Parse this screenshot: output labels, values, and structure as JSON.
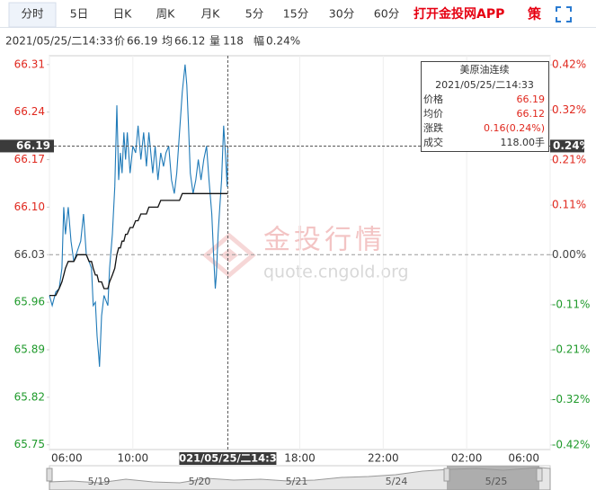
{
  "tabs": {
    "items": [
      "分时",
      "5日",
      "日K",
      "周K",
      "月K",
      "5分",
      "15分",
      "30分",
      "60分"
    ],
    "selected": 0,
    "app_link": "打开金投网APP",
    "strategy": "策"
  },
  "info": {
    "time": "2021/05/25/二14:33",
    "price_label": "价",
    "price": 66.19,
    "avg_label": "均",
    "avg": 66.12,
    "vol_label": "量",
    "vol": 118,
    "change_label": "幅",
    "change": "0.24%"
  },
  "tooltip": {
    "title": "美原油连续",
    "time": "2021/05/25/二14:33",
    "rows": [
      {
        "label": "价格",
        "value": "66.19"
      },
      {
        "label": "均价",
        "value": "66.12"
      },
      {
        "label": "涨跌",
        "value": "0.16(0.24%)"
      },
      {
        "label": "成交",
        "value": "118.00手"
      }
    ]
  },
  "cursor": {
    "time": "2021/05/25/二14:33",
    "price": {
      "value": 66.19,
      "label": "66.19"
    },
    "percent": {
      "value": 0.24,
      "label": "0.24%"
    }
  },
  "watermark": {
    "name": "金投行情",
    "url": "quote.cngold.org"
  },
  "navigator": {
    "dates": [
      "5/19",
      "5/20",
      "5/21",
      "5/24",
      "5/25"
    ]
  },
  "chart_data": {
    "type": "line",
    "x": [
      "06:00",
      "06:08",
      "06:18",
      "06:28",
      "06:36",
      "06:41",
      "06:46",
      "06:54",
      "07:02",
      "07:10",
      "07:20",
      "07:30",
      "07:38",
      "07:46",
      "07:54",
      "08:01",
      "08:06",
      "08:12",
      "08:17",
      "08:22",
      "08:24",
      "08:30",
      "08:37",
      "08:48",
      "08:53",
      "09:01",
      "09:08",
      "09:14",
      "09:19",
      "09:24",
      "09:29",
      "09:34",
      "09:39",
      "09:44",
      "09:52",
      "10:00",
      "10:08",
      "10:15",
      "10:23",
      "10:31",
      "10:39",
      "10:46",
      "10:57",
      "11:04",
      "11:12",
      "11:20",
      "11:28",
      "11:35",
      "11:43",
      "11:51",
      "11:59",
      "12:06",
      "12:14",
      "12:22",
      "12:30",
      "12:35",
      "12:40",
      "12:45",
      "12:53",
      "13:01",
      "13:08",
      "13:16",
      "13:24",
      "13:32",
      "13:39",
      "13:47",
      "13:52",
      "13:57",
      "14:00",
      "14:05",
      "14:10",
      "14:15",
      "14:21",
      "14:26",
      "14:31",
      "14:33"
    ],
    "series": [
      {
        "name": "价格",
        "color": "#1f7ab8",
        "values": [
          65.97,
          65.955,
          65.975,
          65.98,
          66.01,
          66.1,
          66.06,
          66.1,
          66.05,
          66.02,
          66.035,
          66.05,
          66.09,
          66.03,
          66.02,
          66.01,
          65.955,
          65.96,
          65.91,
          65.88,
          65.865,
          65.94,
          65.97,
          65.955,
          66.01,
          66.06,
          66.13,
          66.25,
          66.14,
          66.18,
          66.15,
          66.21,
          66.17,
          66.21,
          66.15,
          66.19,
          66.18,
          66.22,
          66.17,
          66.21,
          66.16,
          66.21,
          66.15,
          66.19,
          66.14,
          66.18,
          66.16,
          66.18,
          66.19,
          66.14,
          66.12,
          66.15,
          66.21,
          66.27,
          66.31,
          66.28,
          66.22,
          66.15,
          66.12,
          66.14,
          66.17,
          66.14,
          66.17,
          66.19,
          66.14,
          66.09,
          66.03,
          65.98,
          66.0,
          66.06,
          66.1,
          66.14,
          66.22,
          66.18,
          66.13,
          66.19
        ]
      },
      {
        "name": "均价",
        "color": "#111111",
        "values": [
          65.97,
          65.97,
          65.97,
          65.98,
          65.99,
          66.0,
          66.01,
          66.02,
          66.02,
          66.02,
          66.03,
          66.03,
          66.03,
          66.03,
          66.02,
          66.02,
          66.01,
          66.0,
          66.0,
          65.99,
          65.99,
          65.99,
          65.98,
          65.98,
          65.99,
          66.0,
          66.01,
          66.03,
          66.04,
          66.04,
          66.05,
          66.05,
          66.06,
          66.06,
          66.07,
          66.07,
          66.08,
          66.08,
          66.09,
          66.09,
          66.09,
          66.1,
          66.1,
          66.1,
          66.1,
          66.11,
          66.11,
          66.11,
          66.11,
          66.11,
          66.11,
          66.11,
          66.11,
          66.12,
          66.12,
          66.12,
          66.12,
          66.12,
          66.12,
          66.12,
          66.12,
          66.12,
          66.12,
          66.12,
          66.12,
          66.12,
          66.12,
          66.12,
          66.12,
          66.12,
          66.12,
          66.12,
          66.12,
          66.12,
          66.12,
          66.12
        ]
      }
    ],
    "xlim": [
      "06:00",
      "06:00"
    ],
    "xticks": [
      "06:00",
      "10:00",
      "18:00",
      "22:00",
      "02:00",
      "06:00"
    ],
    "ylim": [
      65.743,
      66.323
    ],
    "yticks": [
      66.31,
      66.24,
      66.17,
      {
        "value": 66.1,
        "label": "66.10"
      },
      66.03,
      65.96,
      65.89,
      65.82,
      65.75
    ],
    "y2lim": [
      -0.43,
      0.44
    ],
    "y2ticks": [
      {
        "value": 0.42,
        "label": "0.42%"
      },
      {
        "value": 0.32,
        "label": "0.32%"
      },
      {
        "value": 0.21,
        "label": "0.21%"
      },
      {
        "value": 0.11,
        "label": "0.11%"
      },
      {
        "value": 0,
        "label": "0.00%"
      },
      {
        "value": -0.11,
        "label": "-0.11%"
      },
      {
        "value": -0.21,
        "label": "-0.21%"
      },
      {
        "value": -0.32,
        "label": "-0.32%"
      },
      {
        "value": -0.42,
        "label": "-0.42%"
      }
    ],
    "base": 66.03,
    "grid": true,
    "up_color": "#e0281e",
    "down_color": "#1f9a2b",
    "flat_color": "#444444"
  }
}
